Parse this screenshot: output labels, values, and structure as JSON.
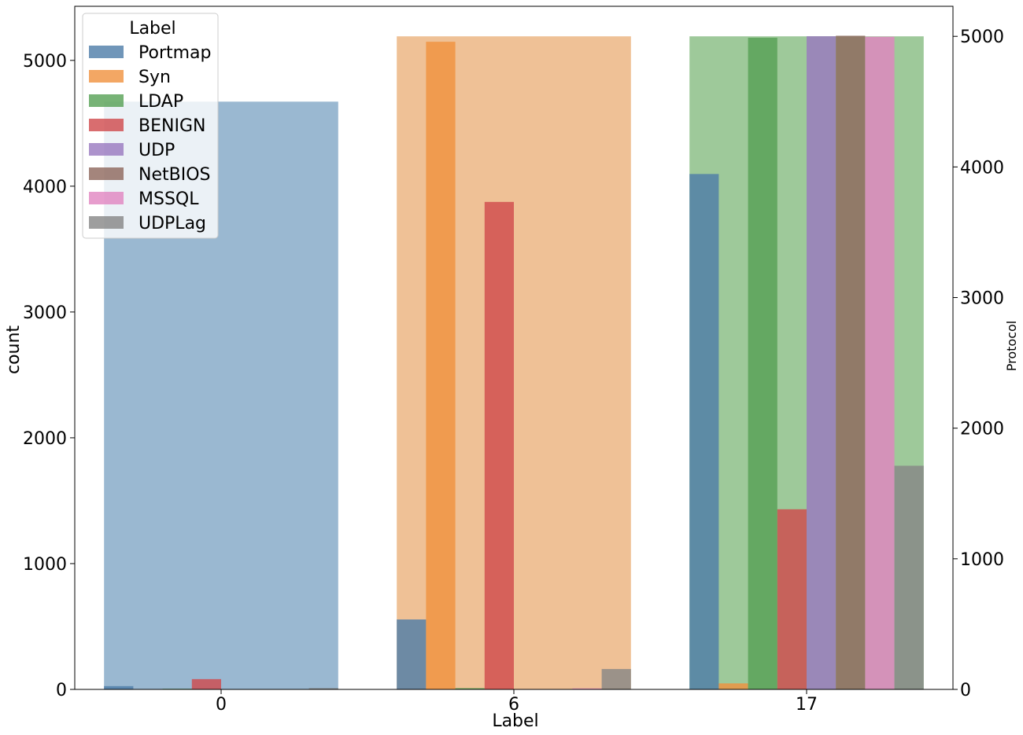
{
  "chart_data": {
    "type": "bar",
    "xlabel": "Label",
    "ylabel": "count",
    "y2label": "Protocol",
    "categories": [
      "0",
      "6",
      "17"
    ],
    "ylim": [
      0,
      5430
    ],
    "y2lim": [
      0,
      5230
    ],
    "yticks": [
      0,
      1000,
      2000,
      3000,
      4000,
      5000
    ],
    "y2ticks": [
      0,
      1000,
      2000,
      3000,
      4000,
      5000
    ],
    "legend": {
      "title": "Label",
      "placement": "top-left"
    },
    "background_series": {
      "axis": "right",
      "values": [
        4500,
        5000,
        5000
      ],
      "colors": [
        "#9ab8d1",
        "#efc196",
        "#9ec99a"
      ]
    },
    "series": [
      {
        "name": "Portmap",
        "color": "#4c7ca8",
        "opacity": 0.8,
        "values": [
          26,
          556,
          4097
        ]
      },
      {
        "name": "Syn",
        "color": "#f0913d",
        "opacity": 0.8,
        "values": [
          0,
          5148,
          48
        ]
      },
      {
        "name": "LDAP",
        "color": "#55a054",
        "opacity": 0.8,
        "values": [
          5,
          10,
          5180
        ]
      },
      {
        "name": "BENIGN",
        "color": "#d0494b",
        "opacity": 0.8,
        "values": [
          82,
          3875,
          1432
        ]
      },
      {
        "name": "UDP",
        "color": "#9878bf",
        "opacity": 0.8,
        "values": [
          0,
          2,
          5192
        ]
      },
      {
        "name": "NetBIOS",
        "color": "#8d665b",
        "opacity": 0.8,
        "values": [
          0,
          0,
          5196
        ]
      },
      {
        "name": "MSSQL",
        "color": "#e184c0",
        "opacity": 0.8,
        "values": [
          0,
          8,
          5188
        ]
      },
      {
        "name": "UDPLag",
        "color": "#868686",
        "opacity": 0.8,
        "values": [
          10,
          162,
          1778
        ]
      }
    ]
  }
}
